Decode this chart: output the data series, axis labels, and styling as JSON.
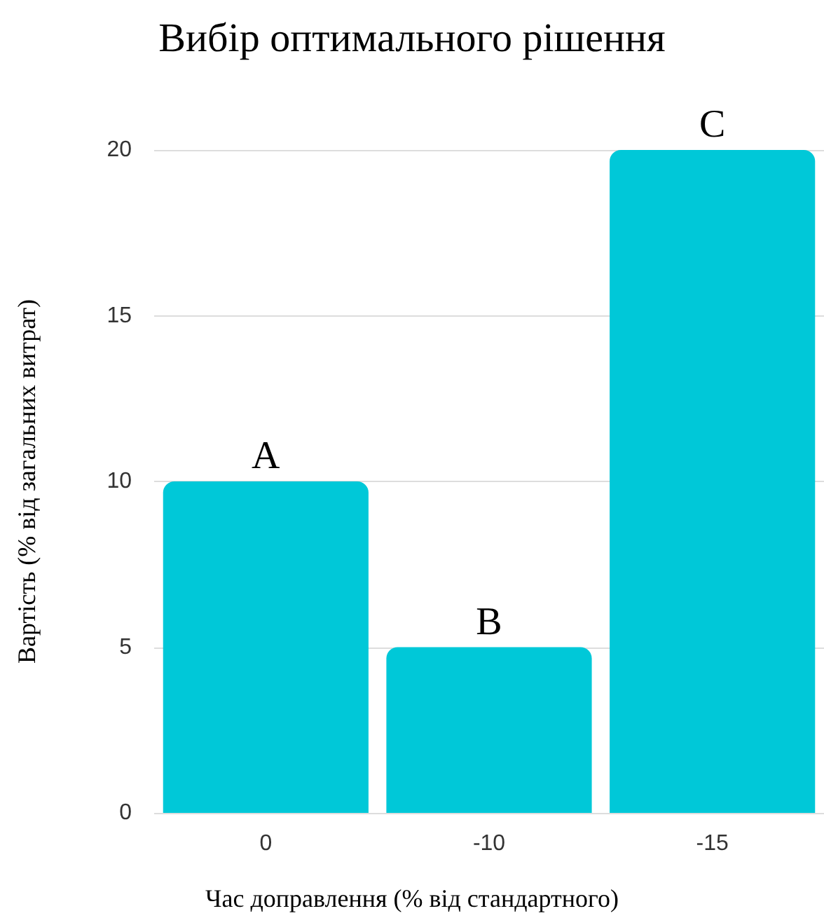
{
  "chart_data": {
    "type": "bar",
    "title": "Вибір оптимального рішення",
    "xlabel": "Час доправлення (% від стандартного)",
    "ylabel": "Вартість (% від загальних витрат)",
    "categories": [
      "0",
      "-10",
      "-15"
    ],
    "values": [
      10,
      5,
      20
    ],
    "value_labels": [
      "A",
      "B",
      "C"
    ],
    "color": "#00c8d8",
    "ylim": [
      0,
      20
    ],
    "yticks": [
      0,
      5,
      10,
      15,
      20
    ],
    "grid": "y"
  }
}
